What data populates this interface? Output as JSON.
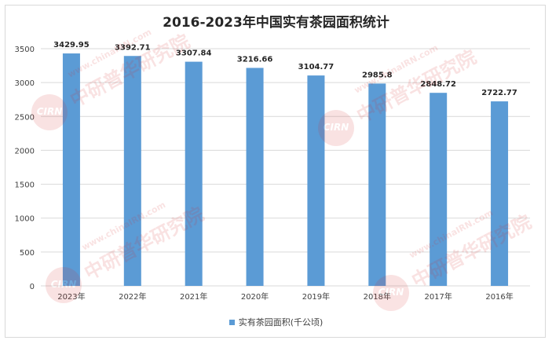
{
  "chart_data": {
    "type": "bar",
    "title": "2016-2023年中国实有茶园面积统计",
    "categories": [
      "2023年",
      "2022年",
      "2021年",
      "2020年",
      "2019年",
      "2018年",
      "2017年",
      "2016年"
    ],
    "series": [
      {
        "name": "实有茶园面积(千公顷)",
        "values": [
          3429.95,
          3392.71,
          3307.84,
          3216.66,
          3104.77,
          2985.8,
          2848.72,
          2722.77
        ],
        "labels": [
          "3429.95",
          "3392.71",
          "3307.84",
          "3216.66",
          "3104.77",
          "2985.8",
          "2848.72",
          "2722.77"
        ],
        "color": "#5b9bd5"
      }
    ],
    "ylim": [
      0,
      3500
    ],
    "yticks": [
      "0",
      "500",
      "1000",
      "1500",
      "2000",
      "2500",
      "3000",
      "3500"
    ],
    "grid": true,
    "legend_position": "bottom"
  },
  "watermark": {
    "seal_text": "CIRN",
    "brand_cn": "中研普华研究院",
    "url": "www.chinaIRN.com"
  }
}
